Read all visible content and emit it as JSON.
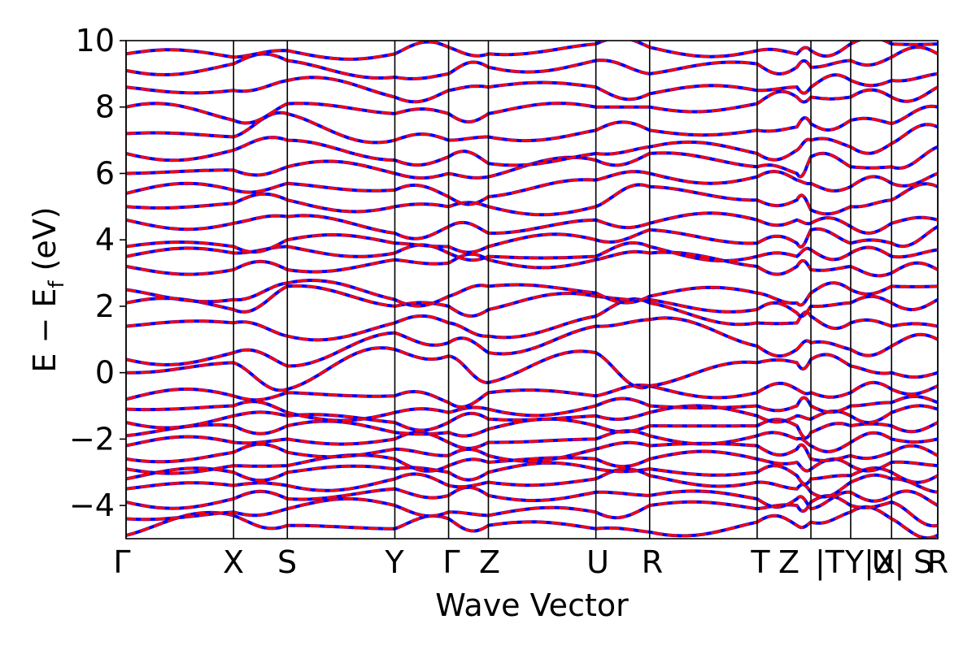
{
  "chart_data": {
    "type": "line",
    "title": "",
    "xlabel": "Wave Vector",
    "ylabel_main": "E − E",
    "ylabel_sub": "f",
    "ylabel_unit": "(eV)",
    "ylim": [
      -5,
      10
    ],
    "yticks": [
      -4,
      -2,
      0,
      2,
      4,
      6,
      8,
      10
    ],
    "ytick_labels": [
      "−4",
      "−2",
      "0",
      "2",
      "4",
      "6",
      "8",
      "10"
    ],
    "kpath": [
      {
        "label": "Γ",
        "pos": 0.0
      },
      {
        "label": "X",
        "pos": 1.0
      },
      {
        "label": "S",
        "pos": 1.5
      },
      {
        "label": "Y",
        "pos": 2.5
      },
      {
        "label": "Γ",
        "pos": 3.0
      },
      {
        "label": "Z",
        "pos": 3.37
      },
      {
        "label": "U",
        "pos": 4.37
      },
      {
        "label": "R",
        "pos": 4.87
      },
      {
        "label": "T",
        "pos": 5.87
      },
      {
        "label": "Z",
        "pos": 6.24
      },
      {
        "label": "|T",
        "pos": 6.37
      },
      {
        "label": "Y|X",
        "pos": 6.74
      },
      {
        "label": "U|",
        "pos": 7.12
      },
      {
        "label": "S",
        "pos": 7.5
      },
      {
        "label": "R",
        "pos": 7.55
      }
    ],
    "kpath_lines": [
      0.0,
      1.0,
      1.5,
      2.5,
      3.0,
      3.37,
      4.37,
      4.87,
      5.87,
      6.37,
      6.74,
      7.12,
      7.55
    ],
    "grid": false,
    "legend": "none",
    "series": [
      {
        "color": "#0000ff",
        "style": "solid"
      },
      {
        "color": "#ff0000",
        "style": "dashed"
      }
    ],
    "band_energies_at_nodes": [
      [
        -4.9,
        -4.3,
        -4.6,
        -4.7,
        -4.4,
        -4.6,
        -4.7,
        -4.8,
        -4.5,
        -4.6,
        -4.5,
        -4.2,
        -4.4,
        -4.9
      ],
      [
        -4.4,
        -4.2,
        -4.1,
        -4.0,
        -4.2,
        -4.3,
        -4.2,
        -4.0,
        -4.1,
        -4.0,
        -3.9,
        -4.0,
        -3.9,
        -4.6
      ],
      [
        -3.9,
        -3.8,
        -3.8,
        -3.5,
        -3.7,
        -3.7,
        -3.6,
        -3.7,
        -3.8,
        -3.8,
        -4.1,
        -3.6,
        -3.7,
        -4.0
      ],
      [
        -3.5,
        -3.4,
        -3.4,
        -3.2,
        -3.4,
        -3.3,
        -3.2,
        -3.1,
        -3.3,
        -3.5,
        -3.6,
        -3.3,
        -3.2,
        -3.6
      ],
      [
        -3.2,
        -3.0,
        -3.0,
        -2.9,
        -3.0,
        -3.0,
        -2.9,
        -2.9,
        -3.0,
        -3.1,
        -3.2,
        -3.1,
        -3.0,
        -3.1
      ],
      [
        -2.9,
        -2.8,
        -2.8,
        -2.6,
        -2.8,
        -2.7,
        -2.6,
        -2.6,
        -2.6,
        -2.7,
        -2.9,
        -2.8,
        -2.7,
        -2.8
      ],
      [
        -2.6,
        -2.4,
        -2.4,
        -2.3,
        -2.5,
        -2.5,
        -2.3,
        -2.2,
        -2.2,
        -2.3,
        -2.6,
        -2.5,
        -2.4,
        -2.5
      ],
      [
        -2.2,
        -2.1,
        -2.0,
        -2.0,
        -2.1,
        -2.1,
        -2.0,
        -1.9,
        -1.9,
        -2.0,
        -2.2,
        -2.1,
        -2.0,
        -2.0
      ],
      [
        -1.9,
        -1.6,
        -1.6,
        -1.8,
        -1.8,
        -1.7,
        -1.6,
        -1.6,
        -1.6,
        -1.6,
        -1.8,
        -1.6,
        -1.6,
        -1.5
      ],
      [
        -1.5,
        -1.3,
        -1.3,
        -1.5,
        -1.5,
        -1.4,
        -1.3,
        -1.2,
        -1.3,
        -1.3,
        -1.4,
        -1.3,
        -1.2,
        -1.1
      ],
      [
        -1.1,
        -1.0,
        -1.2,
        -1.2,
        -1.2,
        -1.1,
        -1.0,
        -1.0,
        -1.0,
        -1.0,
        -1.0,
        -1.0,
        -0.9,
        -0.9
      ],
      [
        -0.8,
        -0.7,
        -0.6,
        -0.7,
        -0.9,
        -0.6,
        -0.7,
        -0.4,
        -0.6,
        -0.5,
        -0.6,
        -0.6,
        -0.5,
        -0.4
      ],
      [
        0.0,
        0.3,
        -0.5,
        0.7,
        0.5,
        -0.3,
        0.6,
        -0.4,
        0.3,
        0.3,
        0.4,
        0.2,
        0.0,
        0.0
      ],
      [
        0.4,
        0.6,
        0.2,
        1.2,
        0.9,
        0.6,
        1.4,
        1.6,
        0.8,
        0.7,
        0.9,
        0.7,
        0.8,
        1.0
      ],
      [
        1.4,
        1.5,
        1.1,
        1.5,
        1.5,
        1.1,
        1.7,
        2.1,
        1.5,
        1.5,
        1.7,
        1.5,
        1.4,
        1.4
      ],
      [
        2.1,
        1.9,
        2.6,
        2.0,
        2.0,
        1.9,
        2.3,
        2.2,
        1.9,
        1.8,
        2.0,
        2.1,
        2.1,
        2.2
      ],
      [
        2.5,
        2.2,
        2.7,
        2.2,
        2.3,
        2.6,
        2.4,
        2.3,
        2.4,
        2.1,
        2.4,
        2.5,
        2.6,
        2.6
      ],
      [
        3.2,
        3.1,
        3.1,
        3.4,
        3.3,
        3.4,
        3.4,
        3.6,
        3.2,
        3.2,
        3.1,
        3.2,
        3.0,
        3.1
      ],
      [
        3.5,
        3.6,
        3.8,
        3.6,
        3.6,
        3.5,
        3.5,
        3.8,
        3.5,
        3.5,
        3.7,
        3.6,
        3.5,
        3.7
      ],
      [
        3.8,
        3.8,
        4.0,
        3.9,
        3.8,
        3.8,
        4.0,
        4.3,
        3.9,
        3.9,
        4.3,
        3.9,
        3.9,
        4.4
      ],
      [
        4.6,
        4.5,
        4.7,
        4.2,
        4.4,
        4.2,
        4.6,
        4.5,
        4.6,
        4.6,
        4.5,
        4.4,
        4.5,
        4.6
      ],
      [
        5.0,
        5.1,
        5.2,
        5.0,
        5.0,
        5.0,
        5.0,
        5.6,
        5.2,
        5.2,
        4.9,
        5.0,
        5.2,
        5.6
      ],
      [
        5.4,
        5.5,
        5.7,
        5.5,
        5.3,
        5.3,
        5.8,
        6.0,
        5.9,
        5.8,
        5.7,
        5.6,
        5.7,
        6.0
      ],
      [
        6.0,
        6.1,
        6.2,
        6.0,
        6.0,
        5.9,
        6.4,
        6.6,
        6.2,
        6.0,
        6.5,
        6.2,
        6.2,
        6.8
      ],
      [
        6.6,
        6.7,
        7.0,
        6.4,
        6.5,
        6.3,
        6.6,
        6.8,
        6.6,
        6.7,
        7.0,
        6.8,
        6.9,
        7.4
      ],
      [
        7.2,
        7.1,
        7.8,
        7.0,
        7.0,
        7.1,
        7.3,
        7.3,
        7.3,
        7.4,
        7.5,
        7.6,
        7.5,
        8.0
      ],
      [
        8.0,
        7.6,
        8.1,
        7.8,
        7.8,
        7.8,
        8.0,
        8.0,
        8.1,
        8.3,
        8.3,
        8.3,
        8.3,
        8.6
      ],
      [
        8.6,
        8.5,
        8.8,
        8.3,
        8.5,
        8.6,
        8.6,
        8.4,
        8.5,
        8.6,
        8.6,
        8.8,
        8.8,
        9.0
      ],
      [
        9.1,
        9.3,
        9.4,
        8.9,
        9.0,
        9.2,
        9.4,
        9.0,
        9.3,
        9.2,
        9.2,
        9.4,
        9.5,
        9.6
      ],
      [
        9.6,
        9.5,
        9.7,
        9.6,
        9.8,
        9.6,
        9.9,
        9.8,
        9.7,
        9.6,
        9.7,
        9.9,
        9.9,
        9.9
      ]
    ]
  }
}
